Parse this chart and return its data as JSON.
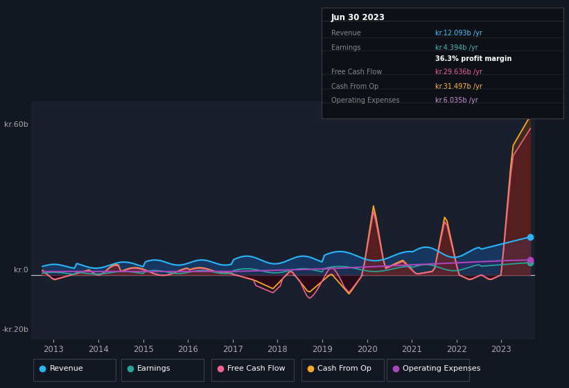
{
  "bg_color": "#131722",
  "plot_bg_color": "#1a1f2e",
  "title": "Jun 30 2023",
  "info_box_rows": [
    {
      "label": "Revenue",
      "value": "kr.12.093b /yr",
      "value_color": "#4fc3f7"
    },
    {
      "label": "Earnings",
      "value": "kr.4.394b /yr",
      "value_color": "#4db6ac"
    },
    {
      "label": "",
      "value": "36.3% profit margin",
      "value_color": "#ffffff",
      "bold": true
    },
    {
      "label": "Free Cash Flow",
      "value": "kr.29.636b /yr",
      "value_color": "#f06292"
    },
    {
      "label": "Cash From Op",
      "value": "kr.31.497b /yr",
      "value_color": "#ffb74d"
    },
    {
      "label": "Operating Expenses",
      "value": "kr.6.035b /yr",
      "value_color": "#ce93d8"
    }
  ],
  "ylabel_60": "kr.60b",
  "ylabel_0": "kr.0",
  "ylabel_neg20": "-kr.20b",
  "ylim": [
    -25,
    68
  ],
  "xlim": [
    2012.5,
    2023.75
  ],
  "years": [
    2013,
    2014,
    2015,
    2016,
    2017,
    2018,
    2019,
    2020,
    2021,
    2022,
    2023
  ],
  "rev_color": "#29b6f6",
  "earn_color": "#26a69a",
  "fcf_color": "#f06292",
  "cfop_color": "#ffa726",
  "opex_color": "#ab47bc",
  "grid_color": "#2a3040",
  "zero_line_color": "#cccccc",
  "legend_items": [
    {
      "label": "Revenue",
      "color": "#29b6f6"
    },
    {
      "label": "Earnings",
      "color": "#26a69a"
    },
    {
      "label": "Free Cash Flow",
      "color": "#f06292"
    },
    {
      "label": "Cash From Op",
      "color": "#ffa726"
    },
    {
      "label": "Operating Expenses",
      "color": "#ab47bc"
    }
  ]
}
